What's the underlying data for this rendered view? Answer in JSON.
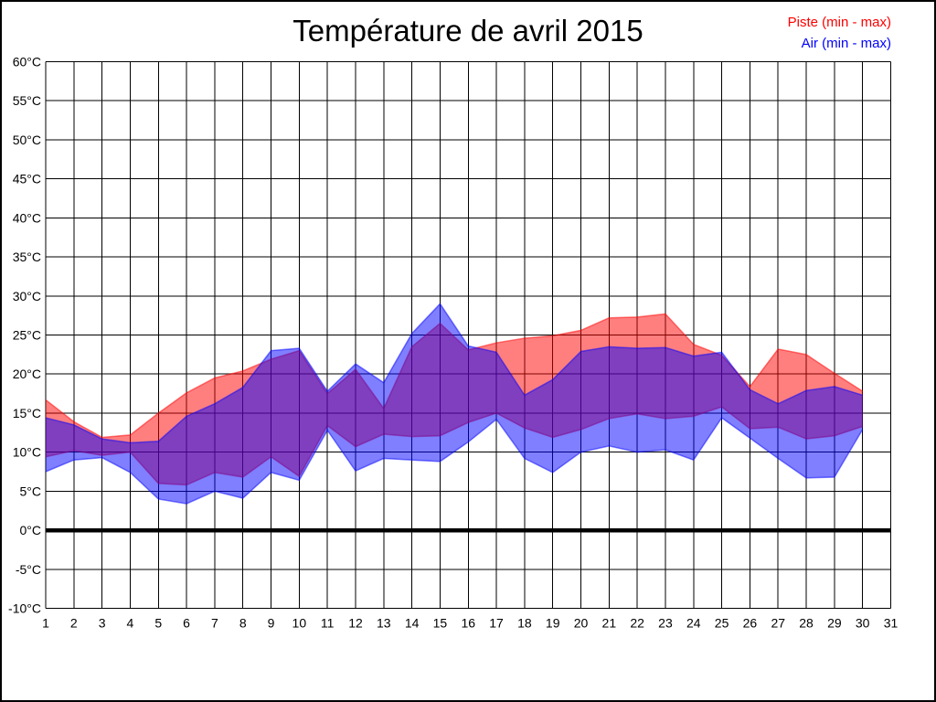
{
  "title": "Température de avril 2015",
  "legend": [
    {
      "label": "Piste (min - max)",
      "color": "#ff0000"
    },
    {
      "label": "Air (min - max)",
      "color": "#0000ff"
    }
  ],
  "chart_data": {
    "type": "area",
    "title": "Température de avril 2015",
    "xlabel": "",
    "ylabel": "",
    "xlim": [
      1,
      31
    ],
    "ylim": [
      -10,
      60
    ],
    "grid": true,
    "zero_line_value": 0,
    "legend_position": "top-right",
    "fill_opacity": 0.5,
    "background": "#ffffff",
    "grid_color": "#000000",
    "x": [
      1,
      2,
      3,
      4,
      5,
      6,
      7,
      8,
      9,
      10,
      11,
      12,
      13,
      14,
      15,
      16,
      17,
      18,
      19,
      20,
      21,
      22,
      23,
      24,
      25,
      26,
      27,
      28,
      29,
      30
    ],
    "x_ticks": [
      1,
      2,
      3,
      4,
      5,
      6,
      7,
      8,
      9,
      10,
      11,
      12,
      13,
      14,
      15,
      16,
      17,
      18,
      19,
      20,
      21,
      22,
      23,
      24,
      25,
      26,
      27,
      28,
      29,
      30,
      31
    ],
    "y_ticks": [
      {
        "value": 60,
        "label": "60°C"
      },
      {
        "value": 55,
        "label": "55°C"
      },
      {
        "value": 50,
        "label": "50°C"
      },
      {
        "value": 45,
        "label": "45°C"
      },
      {
        "value": 40,
        "label": "40°C"
      },
      {
        "value": 35,
        "label": "35°C"
      },
      {
        "value": 30,
        "label": "30°C"
      },
      {
        "value": 25,
        "label": "25°C"
      },
      {
        "value": 20,
        "label": "20°C"
      },
      {
        "value": 15,
        "label": "15°C"
      },
      {
        "value": 10,
        "label": "10°C"
      },
      {
        "value": 5,
        "label": "5°C"
      },
      {
        "value": 0,
        "label": "0°C"
      },
      {
        "value": -5,
        "label": "-5°C"
      },
      {
        "value": -10,
        "label": "-10°C"
      }
    ],
    "series": [
      {
        "name": "Piste (min - max)",
        "color": "#ff0000",
        "min": [
          9.4,
          10.2,
          9.6,
          10.0,
          6.0,
          5.8,
          7.4,
          6.8,
          9.4,
          6.9,
          13.4,
          10.7,
          12.3,
          12.0,
          12.1,
          13.8,
          15.0,
          13.1,
          11.9,
          12.9,
          14.3,
          14.9,
          14.3,
          14.6,
          15.8,
          13.0,
          13.2,
          11.7,
          12.1,
          13.3
        ],
        "max": [
          16.7,
          13.9,
          11.9,
          12.2,
          15.0,
          17.6,
          19.5,
          20.4,
          21.9,
          23.0,
          17.5,
          20.6,
          15.6,
          23.5,
          26.5,
          23.1,
          24.0,
          24.6,
          24.9,
          25.6,
          27.2,
          27.3,
          27.7,
          23.8,
          22.4,
          18.4,
          23.2,
          22.5,
          20.1,
          17.8
        ]
      },
      {
        "name": "Air (min - max)",
        "color": "#0000ff",
        "min": [
          7.5,
          9.0,
          9.3,
          7.4,
          4.0,
          3.4,
          5.0,
          4.1,
          7.4,
          6.4,
          12.8,
          7.6,
          9.2,
          9.0,
          8.8,
          11.3,
          14.2,
          9.2,
          7.4,
          10.0,
          10.8,
          10.0,
          10.3,
          9.0,
          14.4,
          11.8,
          9.2,
          6.7,
          6.8,
          12.9
        ],
        "max": [
          14.4,
          13.5,
          11.7,
          11.2,
          11.4,
          14.6,
          16.2,
          18.3,
          23.0,
          23.3,
          17.8,
          21.3,
          18.9,
          25.2,
          29.0,
          23.6,
          22.8,
          17.3,
          19.3,
          22.9,
          23.5,
          23.3,
          23.4,
          22.3,
          22.8,
          18.0,
          16.2,
          17.9,
          18.4,
          17.3
        ]
      }
    ]
  }
}
